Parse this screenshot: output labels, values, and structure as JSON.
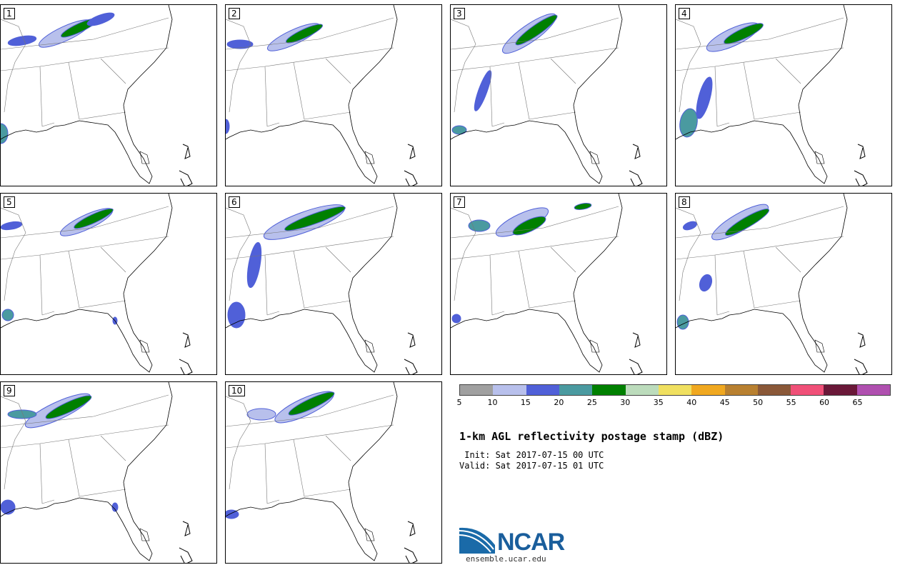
{
  "panels": [
    "1",
    "2",
    "3",
    "4",
    "5",
    "6",
    "7",
    "8",
    "9",
    "10"
  ],
  "colorbar": {
    "colors": [
      "#a0a0a0",
      "#b8c0ec",
      "#5060d8",
      "#4a9aa0",
      "#008000",
      "#bcdcbc",
      "#f0e060",
      "#f0a820",
      "#b88030",
      "#8a5838",
      "#f05078",
      "#6a1838",
      "#b050b0"
    ],
    "ticks": [
      "5",
      "10",
      "15",
      "20",
      "25",
      "30",
      "35",
      "40",
      "45",
      "50",
      "55",
      "60",
      "65"
    ]
  },
  "title": "1-km AGL reflectivity postage stamp (dBZ)",
  "init": " Init: Sat 2017-07-15 00 UTC",
  "valid": "Valid: Sat 2017-07-15 01 UTC",
  "logo": {
    "name": "NCAR",
    "url": "ensemble.ucar.edu"
  }
}
